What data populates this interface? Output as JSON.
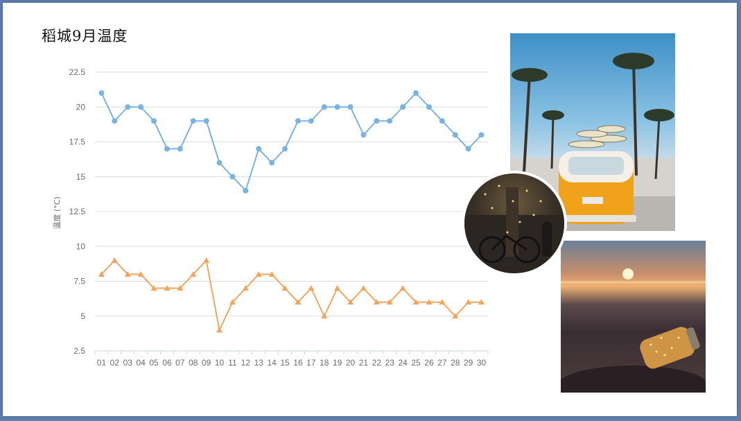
{
  "title": "稻城9月温度",
  "chart_data": {
    "type": "line",
    "ylabel": "温度 (°C)",
    "xlabel": "",
    "ylim": [
      2.5,
      22.5
    ],
    "yticks": [
      "2.5",
      "5",
      "7.5",
      "10",
      "12.5",
      "15",
      "17.5",
      "20",
      "22.5"
    ],
    "grid": true,
    "categories": [
      "01",
      "02",
      "03",
      "04",
      "05",
      "06",
      "07",
      "08",
      "09",
      "10",
      "11",
      "12",
      "13",
      "14",
      "15",
      "16",
      "17",
      "18",
      "19",
      "20",
      "21",
      "22",
      "23",
      "24",
      "25",
      "26",
      "27",
      "28",
      "29",
      "30"
    ],
    "series": [
      {
        "color": "#7ab3e2",
        "marker": "circle",
        "values": [
          21,
          19,
          20,
          20,
          19,
          17,
          17,
          19,
          19,
          16,
          15,
          14,
          17,
          16,
          17,
          19,
          19,
          20,
          20,
          20,
          18,
          19,
          19,
          20,
          21,
          20,
          19,
          18,
          17,
          18
        ]
      },
      {
        "color": "#f2a55d",
        "marker": "triangle",
        "values": [
          8,
          9,
          8,
          8,
          7,
          7,
          7,
          8,
          9,
          4,
          6,
          7,
          8,
          8,
          7,
          6,
          7,
          5,
          7,
          6,
          7,
          6,
          6,
          7,
          6,
          6,
          6,
          5,
          6,
          6
        ]
      }
    ]
  },
  "images": [
    {
      "name": "beach-van-photo"
    },
    {
      "name": "tree-lights-photo"
    },
    {
      "name": "sunset-jar-photo"
    }
  ]
}
